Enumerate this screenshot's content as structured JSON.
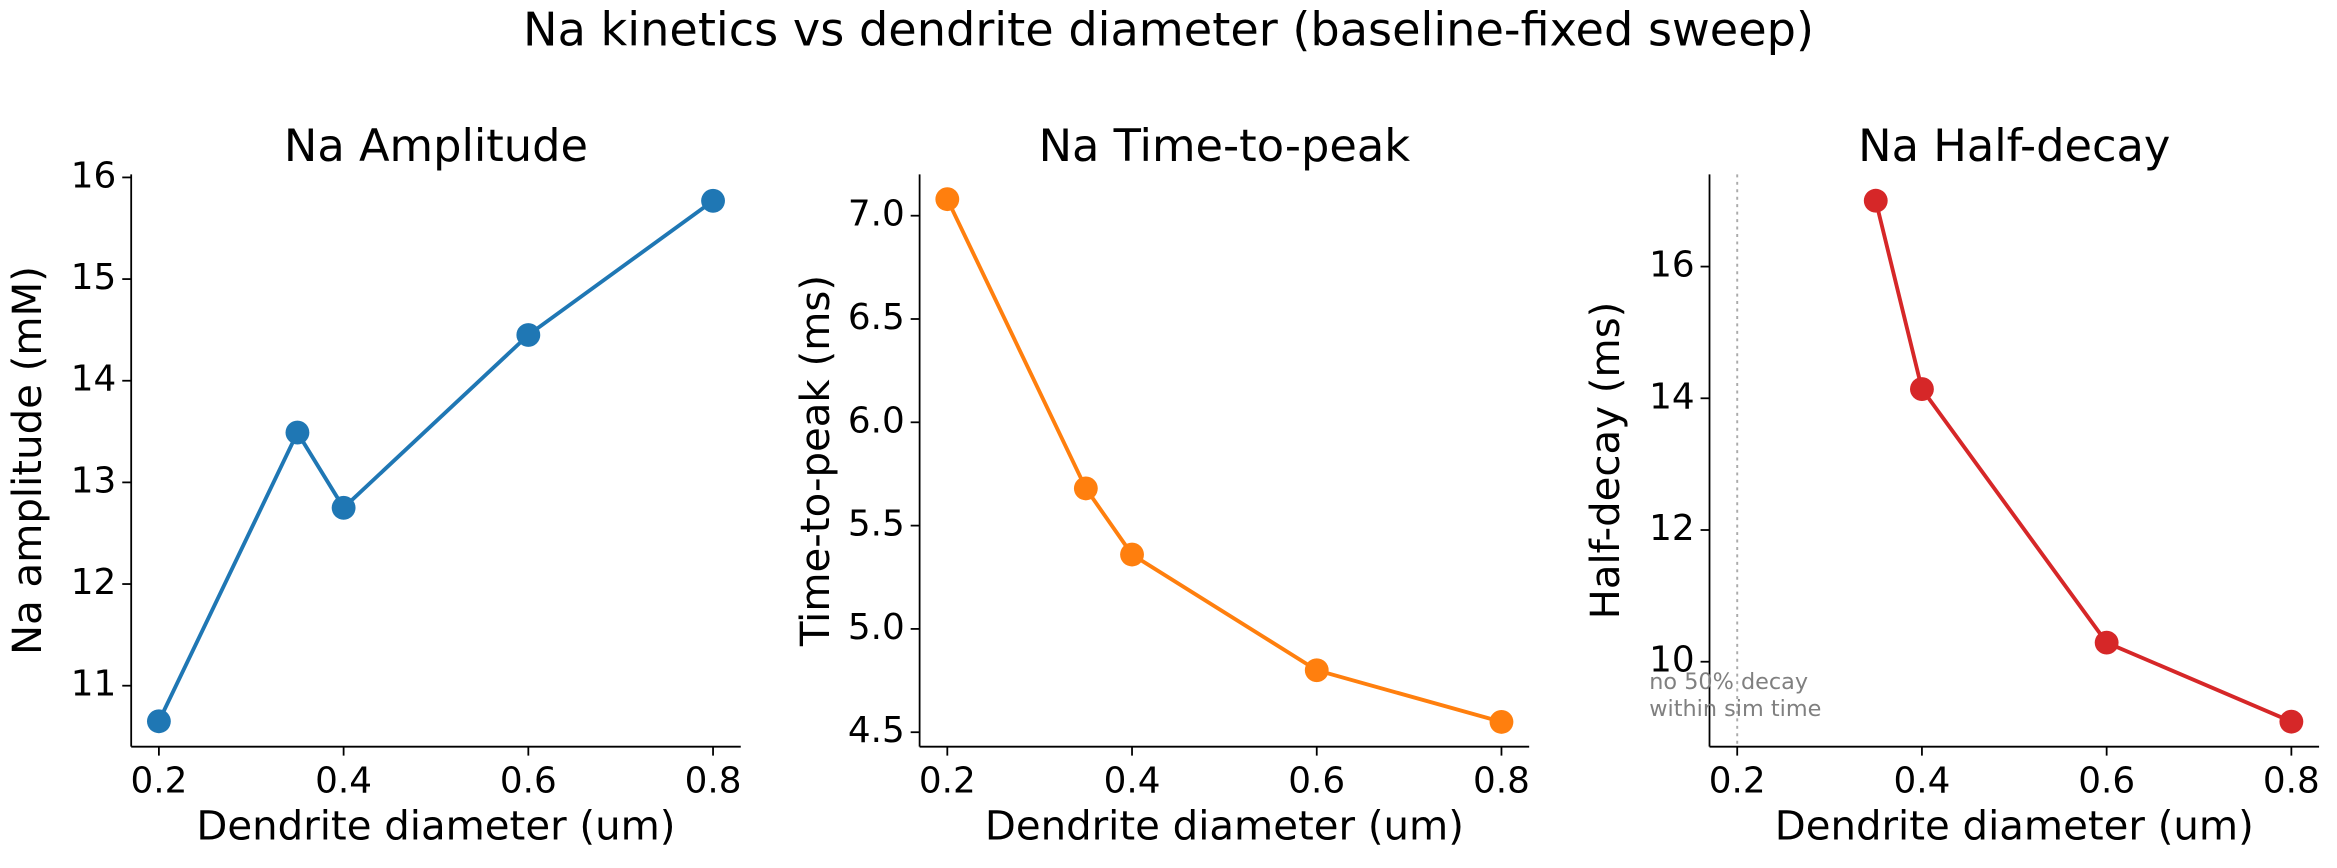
{
  "title": "Na kinetics vs dendrite diameter (baseline-fixed sweep)",
  "chart_data": [
    {
      "type": "line",
      "title": "Na Amplitude",
      "xlabel": "Dendrite diameter (um)",
      "ylabel": "Na amplitude (mM)",
      "x": [
        0.2,
        0.35,
        0.4,
        0.6,
        0.8
      ],
      "values": [
        10.65,
        13.49,
        12.75,
        14.45,
        15.77
      ],
      "color": "#1f77b4",
      "xlim": [
        0.17,
        0.83
      ],
      "ylim": [
        10.4,
        16.03
      ],
      "xticks": [
        0.2,
        0.4,
        0.6,
        0.8
      ],
      "yticks": [
        11,
        12,
        13,
        14,
        15,
        16
      ]
    },
    {
      "type": "line",
      "title": "Na Time-to-peak",
      "xlabel": "Dendrite diameter (um)",
      "ylabel": "Time-to-peak (ms)",
      "x": [
        0.2,
        0.35,
        0.4,
        0.6,
        0.8
      ],
      "values": [
        7.08,
        5.68,
        5.36,
        4.8,
        4.55
      ],
      "color": "#ff7f0e",
      "xlim": [
        0.17,
        0.83
      ],
      "ylim": [
        4.43,
        7.2
      ],
      "xticks": [
        0.2,
        0.4,
        0.6,
        0.8
      ],
      "yticks": [
        4.5,
        {
          "value": 5,
          "label": "5.0"
        },
        5.5,
        {
          "value": 6,
          "label": "6.0"
        },
        6.5,
        {
          "value": 7,
          "label": "7.0"
        }
      ]
    },
    {
      "type": "line",
      "title": "Na Half-decay",
      "xlabel": "Dendrite diameter (um)",
      "ylabel": "Half-decay (ms)",
      "x": [
        0.2,
        0.35,
        0.4,
        0.6,
        0.8
      ],
      "values": [
        null,
        17.0,
        14.14,
        10.29,
        9.09
      ],
      "color": "#d62728",
      "xlim": [
        0.17,
        0.83
      ],
      "ylim": [
        8.71,
        17.4
      ],
      "xticks": [
        0.2,
        0.4,
        0.6,
        0.8
      ],
      "yticks": [
        10,
        12,
        14,
        16
      ],
      "vline": 0.2,
      "annotation": [
        "no 50% decay",
        "within sim time"
      ]
    }
  ]
}
